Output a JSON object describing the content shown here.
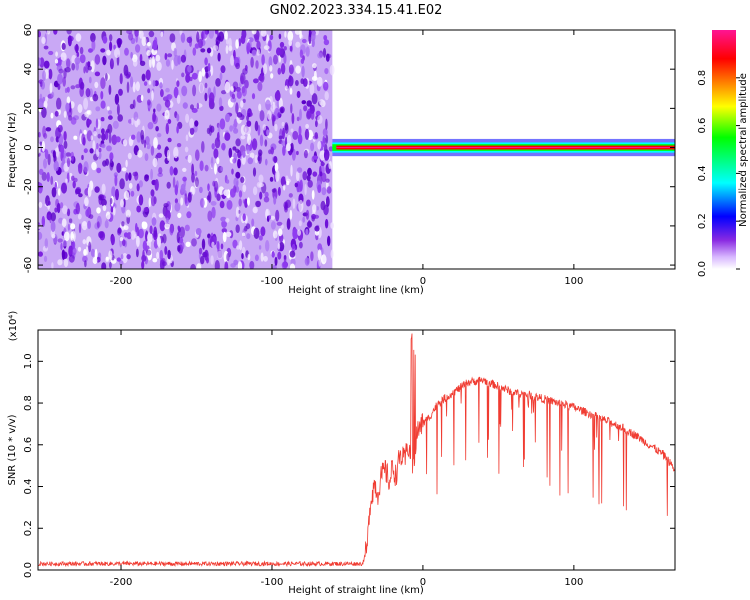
{
  "title": "GN02.2023.334.15.41.E02",
  "chart_data": [
    {
      "type": "heatmap",
      "title": "GN02.2023.334.15.41.E02",
      "xlabel": "Height of straight line (km)",
      "ylabel": "Frequency (Hz)",
      "xlim": [
        -255,
        167
      ],
      "ylim": [
        -62,
        60
      ],
      "x_ticks": [
        -200,
        -100,
        0,
        100
      ],
      "y_ticks": [
        -60,
        -40,
        -20,
        0,
        20,
        40,
        60
      ],
      "noise_region_x": [
        -255,
        -60
      ],
      "signal_band": {
        "x_start": -60,
        "x_end": 167,
        "frequency_hz": 0,
        "halfwidth_hz": 2,
        "amplitude": 1.0
      },
      "colorbar": {
        "label": "Normalized spectral amplitude",
        "range": [
          0.0,
          1.0
        ],
        "ticks": [
          0.0,
          0.2,
          0.4,
          0.6,
          0.8
        ],
        "colors": [
          "#ffffff",
          "#d8b8ff",
          "#8a2be2",
          "#0000ff",
          "#00ffff",
          "#00ff00",
          "#ffff00",
          "#ff8000",
          "#ff0000",
          "#ff1493"
        ]
      },
      "grid": false
    },
    {
      "type": "line",
      "xlabel": "Height of straight line (km)",
      "ylabel": "SNR (10 * v/v)",
      "y_scale_note": "(x10⁴)",
      "xlim": [
        -255,
        167
      ],
      "ylim": [
        0,
        1.15
      ],
      "x_ticks": [
        -200,
        -100,
        0,
        100
      ],
      "y_ticks": [
        0.0,
        0.2,
        0.4,
        0.6,
        0.8,
        1.0
      ],
      "series": [
        {
          "color": "#f03c32",
          "x": [
            -255,
            -200,
            -150,
            -100,
            -60,
            -40,
            -37,
            -35,
            -32,
            -30,
            -28,
            -25,
            -22,
            -20,
            -18,
            -15,
            -12,
            -10,
            -8,
            -6,
            -5,
            -4,
            -2,
            0,
            5,
            10,
            20,
            30,
            40,
            50,
            60,
            70,
            80,
            90,
            100,
            110,
            120,
            130,
            140,
            150,
            160,
            167
          ],
          "values": [
            0.03,
            0.03,
            0.03,
            0.03,
            0.03,
            0.03,
            0.1,
            0.32,
            0.42,
            0.36,
            0.44,
            0.48,
            0.42,
            0.5,
            0.45,
            0.55,
            0.52,
            0.6,
            0.55,
            0.48,
            0.58,
            0.66,
            0.68,
            0.7,
            0.74,
            0.8,
            0.85,
            0.9,
            0.91,
            0.88,
            0.85,
            0.84,
            0.82,
            0.8,
            0.78,
            0.75,
            0.72,
            0.69,
            0.65,
            0.6,
            0.55,
            0.48
          ]
        }
      ],
      "grid": false
    }
  ]
}
